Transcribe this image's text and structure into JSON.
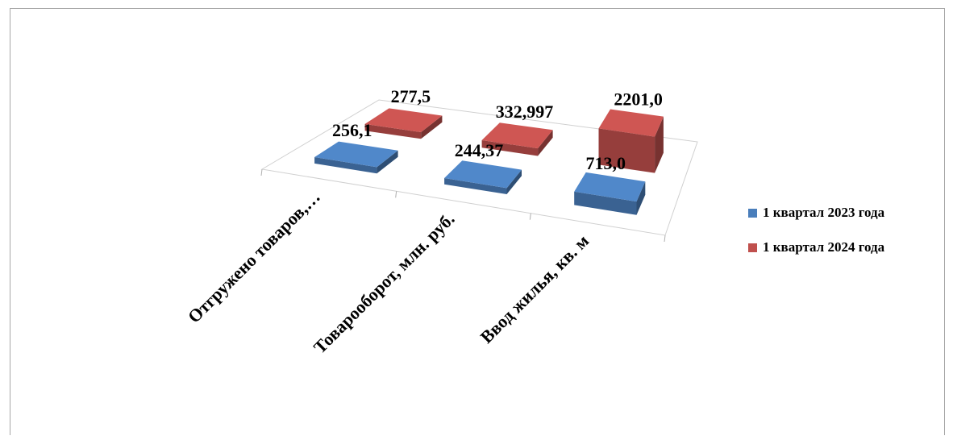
{
  "chart_data": {
    "type": "bar",
    "categories": [
      "Отгружено товаров,…",
      "Товарооборот, млн. руб.",
      "Ввод жилья, кв. м"
    ],
    "series": [
      {
        "name": "1 квартал 2023 года",
        "values": [
          256.1,
          244.37,
          713.0
        ],
        "labels": [
          "256,1",
          "244,37",
          "713,0"
        ],
        "color": "#4a7ebb"
      },
      {
        "name": "1 квартал 2024 года",
        "values": [
          277.5,
          332.997,
          2201.0
        ],
        "labels": [
          "277,5",
          "332,997",
          "2201,0"
        ],
        "color": "#c0504d"
      }
    ],
    "title": "",
    "xlabel": "",
    "ylabel": "",
    "ylim": [
      0,
      2201
    ],
    "legend_position": "right",
    "grid": false
  }
}
